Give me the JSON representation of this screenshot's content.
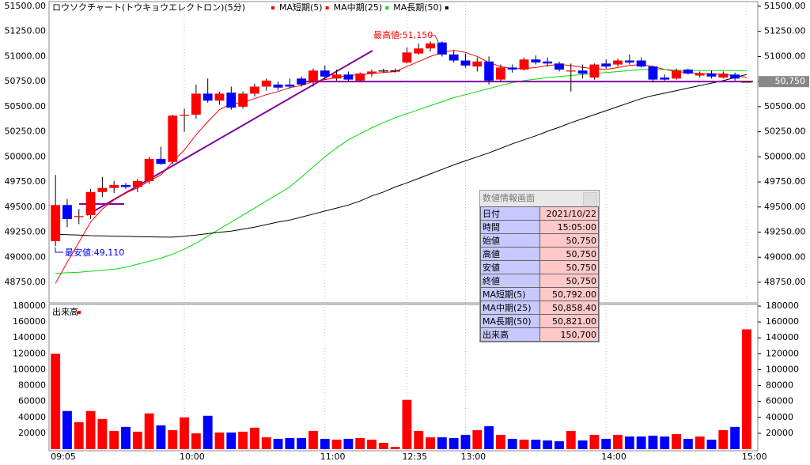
{
  "chart_data": {
    "type": "candlestick",
    "title": "ロウソクチャート(トウキョウエレクトロン)(5分)",
    "up_color": "#ff0000",
    "down_color": "#0000ff",
    "categories": [
      "09:05",
      null,
      null,
      null,
      null,
      null,
      null,
      null,
      null,
      null,
      null,
      "10:00",
      null,
      null,
      null,
      null,
      null,
      null,
      null,
      null,
      null,
      null,
      null,
      "11:00",
      null,
      null,
      null,
      null,
      null,
      null,
      "12:35",
      null,
      null,
      null,
      null,
      "13:00",
      null,
      null,
      null,
      null,
      null,
      null,
      null,
      null,
      null,
      null,
      null,
      "14:00",
      null,
      null,
      null,
      null,
      null,
      null,
      null,
      null,
      null,
      null,
      null,
      "15:00"
    ],
    "open": [
      49160,
      49520,
      49400,
      49420,
      49650,
      49690,
      49720,
      49700,
      49760,
      49980,
      49950,
      50410,
      50420,
      50630,
      50560,
      50640,
      50500,
      50630,
      50700,
      50720,
      50720,
      50780,
      50750,
      50860,
      50780,
      50820,
      50760,
      50830,
      50860,
      50860,
      50940,
      51030,
      51080,
      51140,
      51020,
      50960,
      50900,
      50950,
      50770,
      50890,
      50870,
      50970,
      50950,
      50930,
      50850,
      50860,
      50790,
      50930,
      50920,
      50960,
      50960,
      50900,
      50790,
      50780,
      50870,
      50810,
      50830,
      50790,
      50820,
      50750
    ],
    "high": [
      49820,
      49580,
      49480,
      49680,
      49800,
      49760,
      49740,
      49780,
      50000,
      50100,
      50420,
      50480,
      50720,
      50780,
      50650,
      50700,
      50650,
      50730,
      50780,
      50750,
      50780,
      50800,
      50880,
      50910,
      50870,
      50850,
      50840,
      50870,
      50880,
      50880,
      51090,
      51130,
      51150,
      51150,
      51060,
      51030,
      50990,
      51000,
      50920,
      50920,
      50990,
      51010,
      50990,
      50950,
      50930,
      50920,
      50930,
      50970,
      50980,
      51020,
      50990,
      50910,
      50820,
      50880,
      50880,
      50850,
      50860,
      50850,
      50840,
      50750
    ],
    "low": [
      49110,
      49300,
      49330,
      49380,
      49600,
      49640,
      49680,
      49650,
      49730,
      49920,
      49930,
      50250,
      50380,
      50540,
      50520,
      50470,
      50480,
      50600,
      50660,
      50660,
      50680,
      50700,
      50700,
      50770,
      50760,
      50750,
      50750,
      50800,
      50840,
      50840,
      50930,
      51020,
      51050,
      51000,
      50940,
      50890,
      50850,
      50720,
      50750,
      50840,
      50860,
      50920,
      50900,
      50850,
      50650,
      50780,
      50770,
      50880,
      50900,
      50920,
      50890,
      50740,
      50760,
      50770,
      50820,
      50790,
      50780,
      50780,
      50760,
      50750
    ],
    "close": [
      49520,
      49380,
      49410,
      49650,
      49690,
      49720,
      49700,
      49760,
      49980,
      49930,
      50410,
      50420,
      50630,
      50560,
      50630,
      50490,
      50630,
      50700,
      50760,
      50690,
      50700,
      50720,
      50860,
      50800,
      50820,
      50770,
      50830,
      50850,
      50860,
      50860,
      51040,
      51080,
      51130,
      51020,
      50960,
      50910,
      50950,
      50760,
      50890,
      50870,
      50970,
      50940,
      50930,
      50870,
      50860,
      50830,
      50920,
      50900,
      50960,
      50940,
      50900,
      50770,
      50770,
      50860,
      50830,
      50830,
      50800,
      50830,
      50780,
      50750
    ],
    "ylim": [
      48545,
      51547
    ],
    "yticks": [
      {
        "value": 48750,
        "label": "48750.00"
      },
      {
        "value": 49000,
        "label": "49000.00"
      },
      {
        "value": 49250,
        "label": "49250.00"
      },
      {
        "value": 49500,
        "label": "49500.00"
      },
      {
        "value": 49750,
        "label": "49750.00"
      },
      {
        "value": 50000,
        "label": "50000.00"
      },
      {
        "value": 50250,
        "label": "50250.00"
      },
      {
        "value": 50500,
        "label": "50500.00"
      },
      {
        "value": 50750,
        "label": "50750.00"
      },
      {
        "value": 51000,
        "label": "51000.00"
      },
      {
        "value": 51250,
        "label": "51250.00"
      },
      {
        "value": 51500,
        "label": "51500.00"
      }
    ],
    "series": [
      {
        "name": "MA短期(5)",
        "color": "#ff0000",
        "values": [
          48740,
          48950,
          49150,
          49350,
          49480,
          49570,
          49640,
          49690,
          49760,
          49820,
          49950,
          50070,
          50220,
          50350,
          50470,
          50530,
          50540,
          50580,
          50620,
          50650,
          50690,
          50710,
          50750,
          50770,
          50790,
          50810,
          50820,
          50830,
          50840,
          50850,
          50900,
          50950,
          51000,
          51040,
          51060,
          51040,
          51000,
          50940,
          50900,
          50880,
          50880,
          50890,
          50910,
          50920,
          50910,
          50890,
          50880,
          50870,
          50890,
          50910,
          50920,
          50900,
          50870,
          50850,
          50840,
          50830,
          50830,
          50820,
          50810,
          50792
        ]
      },
      {
        "name": "MA中期(25)",
        "color": "#00dd00",
        "values": [
          48840,
          48845,
          48850,
          48860,
          48870,
          48880,
          48900,
          48930,
          48960,
          48990,
          49030,
          49080,
          49140,
          49210,
          49280,
          49350,
          49420,
          49490,
          49560,
          49630,
          49700,
          49800,
          49900,
          50000,
          50090,
          50170,
          50230,
          50290,
          50340,
          50390,
          50430,
          50470,
          50510,
          50550,
          50590,
          50620,
          50650,
          50680,
          50710,
          50740,
          50760,
          50775,
          50790,
          50800,
          50810,
          50820,
          50830,
          50840,
          50850,
          50860,
          50870,
          50870,
          50870,
          50865,
          50860,
          50860,
          50860,
          50860,
          50860,
          50858
        ]
      },
      {
        "name": "MA長期(50)",
        "color": "#000000",
        "values": [
          49230,
          49225,
          49220,
          49215,
          49212,
          49210,
          49208,
          49205,
          49203,
          49201,
          49200,
          49210,
          49220,
          49235,
          49248,
          49260,
          49280,
          49300,
          49325,
          49350,
          49370,
          49400,
          49430,
          49460,
          49490,
          49520,
          49560,
          49610,
          49650,
          49700,
          49740,
          49785,
          49830,
          49875,
          49920,
          49960,
          50000,
          50040,
          50085,
          50130,
          50170,
          50210,
          50255,
          50295,
          50340,
          50380,
          50420,
          50460,
          50500,
          50540,
          50580,
          50610,
          50635,
          50660,
          50685,
          50710,
          50735,
          50760,
          50790,
          50821
        ]
      }
    ],
    "annotations": [
      "最高値:51,150",
      "最安値:49,110"
    ],
    "current_price": {
      "value": 50750,
      "label": "50,750"
    },
    "volume": {
      "title": "出来高",
      "ylim": [
        0,
        183000
      ],
      "yticks": [
        20000,
        40000,
        60000,
        80000,
        100000,
        120000,
        140000,
        160000,
        180000
      ],
      "values": [
        120000,
        48000,
        34000,
        48000,
        38000,
        23000,
        28000,
        22000,
        45000,
        30000,
        24000,
        40000,
        20000,
        42000,
        21000,
        21000,
        22000,
        27000,
        15000,
        13000,
        14000,
        14000,
        23000,
        13000,
        12000,
        13000,
        14000,
        12000,
        8000,
        3000,
        62000,
        23000,
        15000,
        15000,
        14000,
        18000,
        24000,
        29000,
        18000,
        13000,
        12000,
        12000,
        11000,
        10000,
        23000,
        11000,
        18000,
        13000,
        18000,
        16000,
        16000,
        17000,
        16000,
        19000,
        13000,
        16000,
        12000,
        24000,
        28000,
        150700
      ]
    }
  },
  "info_panel": {
    "title": "数値情報画面",
    "rows": [
      [
        "日付",
        "2021/10/22"
      ],
      [
        "時間",
        "15:05:00"
      ],
      [
        "始値",
        "50,750"
      ],
      [
        "高値",
        "50,750"
      ],
      [
        "安値",
        "50,750"
      ],
      [
        "終値",
        "50,750"
      ],
      [
        "MA短期(5)",
        "50,792.00"
      ],
      [
        "MA中期(25)",
        "50,858.40"
      ],
      [
        "MA長期(50)",
        "50,821.00"
      ],
      [
        "出来高",
        "150,700"
      ]
    ]
  }
}
